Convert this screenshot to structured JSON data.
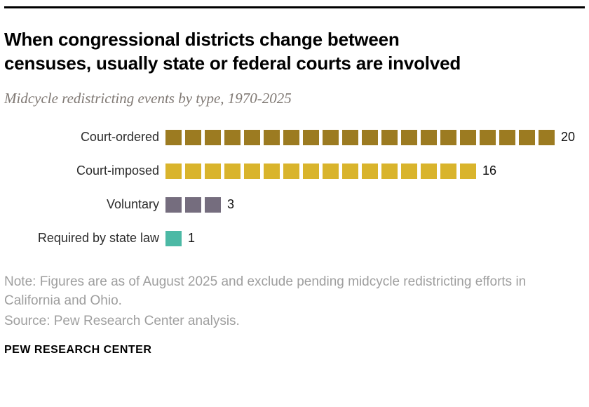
{
  "header": {
    "title": "When congressional districts change between censuses, usually state or federal courts are involved",
    "title_lines": [
      "When congressional districts change between",
      "censuses, usually state or federal courts are involved"
    ],
    "subtitle": "Midcycle redistricting events by type, 1970-2025"
  },
  "chart_data": {
    "type": "bar",
    "variant": "unit-squares",
    "title": "When congressional districts change between censuses, usually state or federal courts are involved",
    "subtitle": "Midcycle redistricting events by type, 1970-2025",
    "categories": [
      "Court-ordered",
      "Court-imposed",
      "Voluntary",
      "Required by state law"
    ],
    "values": [
      20,
      16,
      3,
      1
    ],
    "colors": [
      "#9c7b21",
      "#d9b42c",
      "#756d7e",
      "#4cb9a5"
    ],
    "unit_value": 1,
    "xlabel": "",
    "ylabel": "",
    "legend": "none",
    "grid": "off"
  },
  "notes": {
    "note": "Note: Figures are as of August 2025 and exclude pending midcycle redistricting efforts in California and Ohio.",
    "source": "Source: Pew Research Center analysis."
  },
  "footer": {
    "brand": "PEW RESEARCH CENTER"
  }
}
